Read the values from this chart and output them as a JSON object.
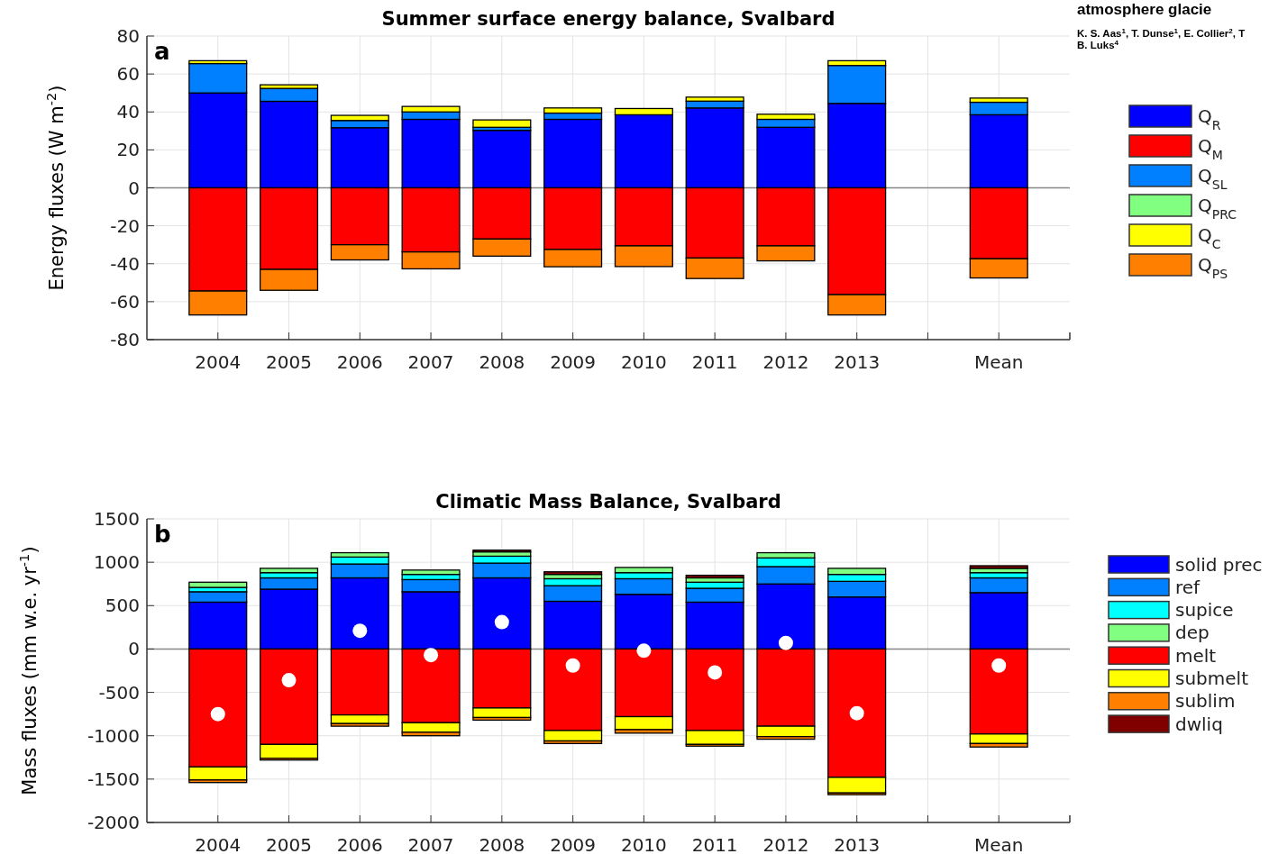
{
  "chart_data": [
    {
      "type": "bar",
      "stacked": true,
      "title": "Summer surface energy balance, Svalbard",
      "ylabel": "Energy fluxes (W m$^{-2}$)",
      "categories": [
        "2004",
        "2005",
        "2006",
        "2007",
        "2008",
        "2009",
        "2010",
        "2011",
        "2012",
        "2013",
        null,
        "Mean"
      ],
      "series": [
        {
          "name": "Q$_{R}$",
          "color": "#0000ff",
          "values": [
            50,
            45.6,
            31.7,
            36.1,
            30.3,
            36.1,
            38.5,
            42.1,
            31.9,
            44.5,
            0,
            38.5
          ]
        },
        {
          "name": "Q$_{M}$",
          "color": "#ff0000",
          "values": [
            -54.4,
            -43,
            -30,
            -33.8,
            -27,
            -32.5,
            -30.6,
            -37,
            -30.6,
            -56.3,
            0,
            -37.4
          ]
        },
        {
          "name": "Q$_{SL}$",
          "color": "#0080ff",
          "values": [
            15.5,
            6.8,
            3.8,
            3.9,
            1.6,
            3.3,
            0,
            3.6,
            4.2,
            20,
            0,
            6.6
          ]
        },
        {
          "name": "Q$_{PRC}$",
          "color": "#80ff80",
          "values": [
            0,
            0,
            0,
            0,
            0,
            0,
            0,
            0,
            0,
            0,
            0,
            0
          ]
        },
        {
          "name": "Q$_{C}$",
          "color": "#ffff00",
          "values": [
            1.5,
            1.9,
            2.7,
            2.9,
            3.9,
            2.7,
            3.3,
            2.1,
            2.7,
            2.5,
            0,
            2.2
          ]
        },
        {
          "name": "Q$_{PS}$",
          "color": "#ff8000",
          "values": [
            -12.6,
            -11,
            -8,
            -8.9,
            -9,
            -9.1,
            -10.9,
            -10.8,
            -7.9,
            -10.7,
            0,
            -10.1
          ]
        }
      ],
      "ylim": [
        -80,
        80
      ],
      "yticks": [
        -80,
        -60,
        -40,
        -20,
        0,
        20,
        40,
        60,
        80
      ],
      "grid": true,
      "legend": "right",
      "annotations": [
        "a",
        "atmosphere glacie",
        "K. S. Aas$^{1}$, T. Dunse$^{1}$, E. Collier$^{2}$, T",
        "B. Luks$^{4}$"
      ]
    },
    {
      "type": "bar",
      "stacked": true,
      "title": "Climatic Mass Balance, Svalbard",
      "ylabel": "Mass fluxes (mm w.e. yr$^{-1}$)",
      "categories": [
        "2004",
        "2005",
        "2006",
        "2007",
        "2008",
        "2009",
        "2010",
        "2011",
        "2012",
        "2013",
        null,
        "Mean"
      ],
      "series": [
        {
          "name": "solid prec",
          "color": "#0000ff",
          "values": [
            540,
            690,
            820,
            660,
            820,
            550,
            630,
            540,
            750,
            600,
            0,
            650
          ]
        },
        {
          "name": "ref",
          "color": "#0080ff",
          "values": [
            120,
            130,
            160,
            140,
            170,
            180,
            180,
            160,
            200,
            180,
            0,
            170
          ]
        },
        {
          "name": "supice",
          "color": "#00ffff",
          "values": [
            50,
            60,
            80,
            60,
            80,
            80,
            70,
            70,
            100,
            80,
            0,
            60
          ]
        },
        {
          "name": "dep",
          "color": "#80ff80",
          "values": [
            60,
            50,
            50,
            50,
            50,
            50,
            60,
            50,
            60,
            70,
            0,
            50
          ]
        },
        {
          "name": "melt",
          "color": "#ff0000",
          "values": [
            -1360,
            -1100,
            -760,
            -850,
            -680,
            -940,
            -780,
            -940,
            -890,
            -1480,
            0,
            -980
          ]
        },
        {
          "name": "submelt",
          "color": "#ffff00",
          "values": [
            -150,
            -160,
            -100,
            -110,
            -110,
            -120,
            -150,
            -160,
            -120,
            -180,
            0,
            -110
          ]
        },
        {
          "name": "sublim",
          "color": "#ff8000",
          "values": [
            -30,
            -20,
            -30,
            -40,
            -30,
            -30,
            -40,
            -20,
            -30,
            -20,
            0,
            -40
          ]
        },
        {
          "name": "dwliq",
          "color": "#800000",
          "values": [
            0,
            0,
            0,
            0,
            20,
            30,
            0,
            30,
            0,
            0,
            0,
            30
          ]
        },
        {
          "type": "scatter",
          "color": "#ffffff",
          "marker": "circle",
          "values": [
            -750,
            -360,
            210,
            -70,
            310,
            -190,
            -20,
            -270,
            70,
            -740,
            null,
            -190
          ]
        }
      ],
      "ylim": [
        -2000,
        1500
      ],
      "yticks": [
        -2000,
        -1500,
        -1000,
        -500,
        0,
        500,
        1000,
        1500
      ],
      "grid": true,
      "legend": "right",
      "annotations": [
        "b"
      ]
    }
  ]
}
